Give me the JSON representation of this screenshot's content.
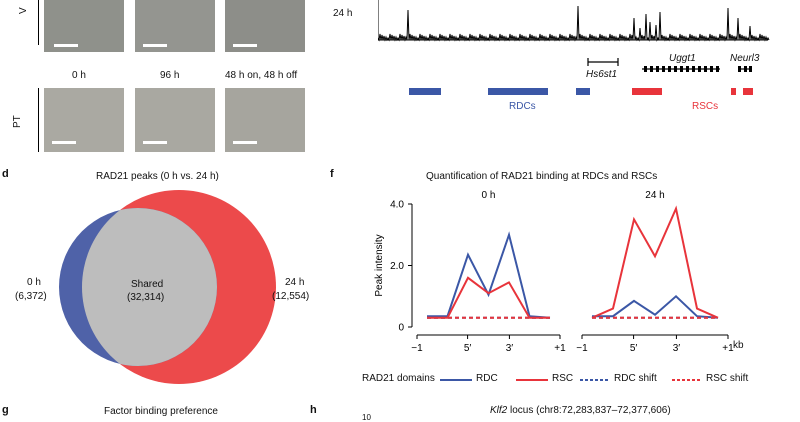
{
  "panelA": {
    "row_label_top": "V",
    "row_label_bottom": "PT",
    "timepoints": [
      "0 h",
      "96 h",
      "48 h on, 48 h off"
    ]
  },
  "panelB": {
    "track_label": "24 h",
    "genes": [
      "Hs6st1",
      "Uggt1",
      "Neurl3"
    ],
    "rdc_label": "RDCs",
    "rsc_label": "RSCs",
    "rdc_color": "#3b57a6",
    "rsc_color": "#e8343b"
  },
  "panelD": {
    "letter": "d",
    "title": "RAD21 peaks (0 h vs. 24 h)",
    "left_label": "0 h",
    "left_count": "(6,372)",
    "shared_label": "Shared",
    "shared_count": "(32,314)",
    "right_label": "24 h",
    "right_count": "(12,554)"
  },
  "panelF": {
    "letter": "f",
    "title": "Quantification of RAD21 binding at RDCs and RSCs",
    "ylabel": "Peak intensity",
    "unit": "kb",
    "legend_title": "RAD21 domains",
    "chart_data": {
      "type": "line",
      "ylim": [
        0,
        4.0
      ],
      "yticks": [
        "0",
        "2.0",
        "4.0"
      ],
      "subplots": [
        {
          "title": "0 h",
          "x_ticks": [
            "−1",
            "5′",
            "3′",
            "+1"
          ],
          "series": [
            {
              "name": "RDC",
              "values": [
                0.35,
                0.35,
                2.35,
                1.05,
                3.0,
                0.35,
                0.3
              ]
            },
            {
              "name": "RSC",
              "values": [
                0.3,
                0.3,
                1.6,
                1.1,
                1.45,
                0.3,
                0.3
              ]
            },
            {
              "name": "RDC shift",
              "values": [
                0.3,
                0.3,
                0.3,
                0.3,
                0.3,
                0.3,
                0.3
              ]
            },
            {
              "name": "RSC shift",
              "values": [
                0.3,
                0.3,
                0.3,
                0.3,
                0.3,
                0.3,
                0.3
              ]
            }
          ]
        },
        {
          "title": "24 h",
          "x_ticks": [
            "−1",
            "5′",
            "3′",
            "+1"
          ],
          "series": [
            {
              "name": "RDC",
              "values": [
                0.35,
                0.35,
                0.85,
                0.4,
                1.0,
                0.35,
                0.3
              ]
            },
            {
              "name": "RSC",
              "values": [
                0.3,
                0.6,
                3.5,
                2.3,
                3.85,
                0.6,
                0.3
              ]
            },
            {
              "name": "RDC shift",
              "values": [
                0.3,
                0.3,
                0.3,
                0.3,
                0.3,
                0.3,
                0.3
              ]
            },
            {
              "name": "RSC shift",
              "values": [
                0.3,
                0.3,
                0.3,
                0.3,
                0.3,
                0.3,
                0.3
              ]
            }
          ]
        }
      ]
    },
    "series_colors": {
      "RDC": "#3b57a6",
      "RSC": "#e8343b"
    }
  },
  "panelG": {
    "letter": "g",
    "title": "Factor binding preference"
  },
  "panelH": {
    "letter": "h",
    "title_italic": "Klf2",
    "title_rest": " locus (chr8:72,283,837–72,377,606)",
    "axis_value": "10"
  }
}
